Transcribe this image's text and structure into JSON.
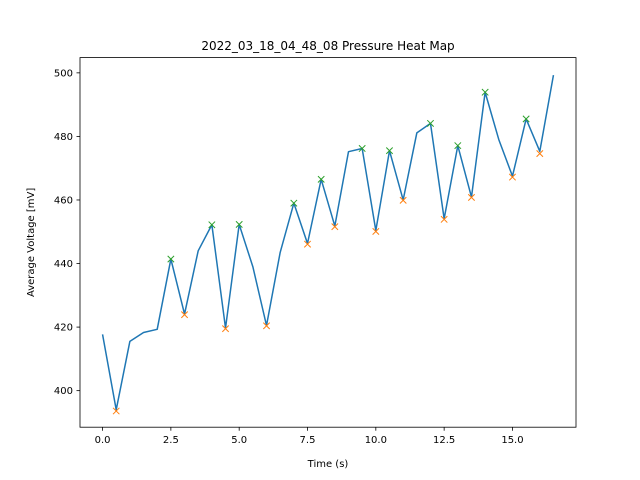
{
  "chart_data": {
    "type": "line",
    "title": "2022_03_18_04_48_08 Pressure Heat Map",
    "xlabel": "Time (s)",
    "ylabel": "Average Voltage [mV]",
    "xlim": [
      -0.825,
      17.325
    ],
    "ylim": [
      388.5,
      504.8
    ],
    "x_ticks": [
      0.0,
      2.5,
      5.0,
      7.5,
      10.0,
      12.5,
      15.0
    ],
    "x_tick_labels": [
      "0.0",
      "2.5",
      "5.0",
      "7.5",
      "10.0",
      "12.5",
      "15.0"
    ],
    "y_ticks": [
      400,
      420,
      440,
      460,
      480,
      500
    ],
    "y_tick_labels": [
      "400",
      "420",
      "440",
      "460",
      "480",
      "500"
    ],
    "grid": false,
    "series": [
      {
        "style": "line",
        "color": "#1f77b4",
        "x": [
          0.0,
          0.5,
          1.0,
          1.5,
          2.0,
          2.5,
          3.0,
          3.5,
          4.0,
          4.5,
          5.0,
          5.5,
          6.0,
          6.5,
          7.0,
          7.5,
          8.0,
          8.5,
          9.0,
          9.5,
          10.0,
          10.5,
          11.0,
          11.5,
          12.0,
          12.5,
          13.0,
          13.5,
          14.0,
          14.5,
          15.0,
          15.5,
          16.0,
          16.5
        ],
        "y": [
          417.7,
          394.0,
          415.5,
          418.3,
          419.3,
          441.4,
          424.1,
          444.0,
          452.2,
          419.7,
          452.3,
          439.0,
          420.5,
          443.5,
          459.0,
          446.3,
          466.5,
          451.8,
          475.2,
          476.2,
          450.4,
          475.5,
          460.0,
          481.1,
          484.1,
          454.1,
          477.1,
          460.9,
          493.9,
          479.0,
          467.5,
          485.5,
          475.3,
          499.3
        ]
      },
      {
        "style": "markers",
        "marker": "x",
        "color": "#2ca02c",
        "x": [
          2.5,
          4.0,
          5.0,
          7.0,
          8.0,
          9.5,
          10.5,
          12.0,
          13.0,
          14.0,
          15.5
        ],
        "y": [
          441.4,
          452.2,
          452.3,
          459.0,
          466.5,
          476.2,
          475.5,
          484.1,
          477.1,
          493.9,
          485.5
        ]
      },
      {
        "style": "markers",
        "marker": "x",
        "color": "#ff7f0e",
        "x": [
          0.5,
          3.0,
          4.5,
          6.0,
          7.5,
          8.5,
          10.0,
          11.0,
          12.5,
          13.5,
          15.0,
          16.0
        ],
        "y": [
          393.6,
          423.9,
          419.5,
          420.4,
          446.1,
          451.6,
          450.1,
          459.9,
          453.9,
          460.8,
          467.2,
          474.6
        ]
      }
    ]
  }
}
